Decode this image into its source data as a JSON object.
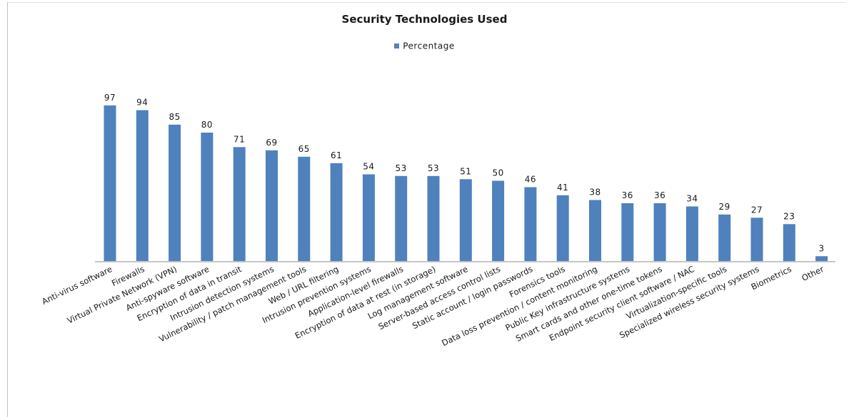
{
  "chart_data": {
    "type": "bar",
    "title": "Security Technologies Used",
    "legend": {
      "position": "top",
      "entries": [
        "Percentage"
      ]
    },
    "series": [
      {
        "name": "Percentage",
        "color": "#4f81bd",
        "values": [
          97,
          94,
          85,
          80,
          71,
          69,
          65,
          61,
          54,
          53,
          53,
          51,
          50,
          46,
          41,
          38,
          36,
          36,
          34,
          29,
          27,
          23,
          3
        ]
      }
    ],
    "categories": [
      "Anti-virus software",
      "Firewalls",
      "Virtual Private Network (VPN)",
      "Anti-spyware software",
      "Encryption of data in transit",
      "Intrusion detection systems",
      "Vulnerability / patch management tools",
      "Web / URL filtering",
      "Intrusion prevention systems",
      "Application-level firewalls",
      "Encryption of data at rest (in storage)",
      "Log management software",
      "Server-based access control lists",
      "Static account / login passwords",
      "Forensics tools",
      "Data loss prevention / content monitoring",
      "Public Key infrastructure systems",
      "Smart cards and other one-time tokens",
      "Endpoint security client software / NAC",
      "Virtualization-specific tools",
      "Specialized wireless security systems",
      "Biometrics",
      "Other"
    ],
    "ylim": [
      0,
      100
    ],
    "grid": false,
    "data_labels": true
  }
}
